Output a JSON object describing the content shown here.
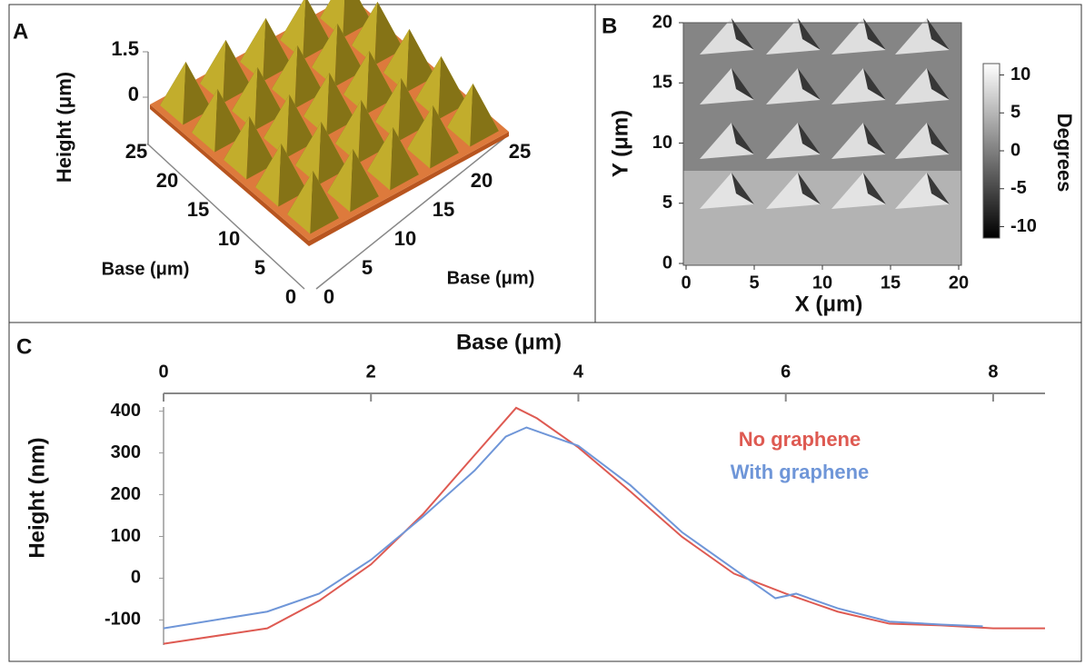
{
  "chart_data": [
    {
      "type": "surface3d",
      "panel": "A",
      "zlabel": "Height (μm)",
      "zlim": [
        0,
        1.5
      ],
      "zticks": [
        0,
        1.5
      ],
      "xlabel": "Base (μm)",
      "xlim": [
        0,
        25
      ],
      "xticks": [
        0,
        5,
        10,
        15,
        20,
        25
      ],
      "ylabel": "Base (μm)",
      "ylim": [
        0,
        25
      ],
      "yticks": [
        0,
        5,
        10,
        15,
        20,
        25
      ]
    },
    {
      "type": "heatmap",
      "panel": "B",
      "xlabel": "X (μm)",
      "ylabel": "Y (μm)",
      "xlim": [
        0,
        20
      ],
      "xticks": [
        0,
        5,
        10,
        15,
        20
      ],
      "ylim": [
        0,
        20
      ],
      "yticks": [
        0,
        5,
        10,
        15,
        20
      ],
      "colorbar_label": "Degrees",
      "clim": [
        -11.5,
        11.5
      ],
      "cticks": [
        10,
        5,
        0,
        -5,
        -10
      ]
    },
    {
      "type": "line",
      "panel": "C",
      "xlabel": "Base (μm)",
      "ylabel": "Height (nm)",
      "xlim": [
        0,
        8.5
      ],
      "xticks": [
        0,
        2,
        4,
        6,
        8
      ],
      "ylim": [
        -160,
        410
      ],
      "yticks": [
        400,
        300,
        200,
        100,
        0,
        -100
      ],
      "series": [
        {
          "name": "No graphene",
          "color": "#de5a52",
          "x": [
            0,
            1,
            1.5,
            2,
            2.5,
            3,
            3.4,
            3.6,
            4,
            4.5,
            5,
            5.5,
            6,
            6.5,
            7,
            7.5,
            8,
            8.5
          ],
          "values": [
            -157,
            -120,
            -54,
            33,
            153,
            295,
            408,
            383,
            313,
            208,
            99,
            11,
            -37,
            -80,
            -109,
            -113,
            -120,
            -120
          ]
        },
        {
          "name": "With graphene",
          "color": "#6f96d8",
          "x": [
            0,
            1,
            1.5,
            2,
            2.5,
            3,
            3.3,
            3.5,
            4,
            4.5,
            5,
            5.5,
            5.9,
            6.1,
            6.5,
            7,
            7.5,
            7.9
          ],
          "values": [
            -120,
            -80,
            -37,
            44,
            147,
            258,
            339,
            361,
            317,
            223,
            110,
            22,
            -48,
            -37,
            -72,
            -104,
            -111,
            -115
          ]
        }
      ]
    }
  ]
}
